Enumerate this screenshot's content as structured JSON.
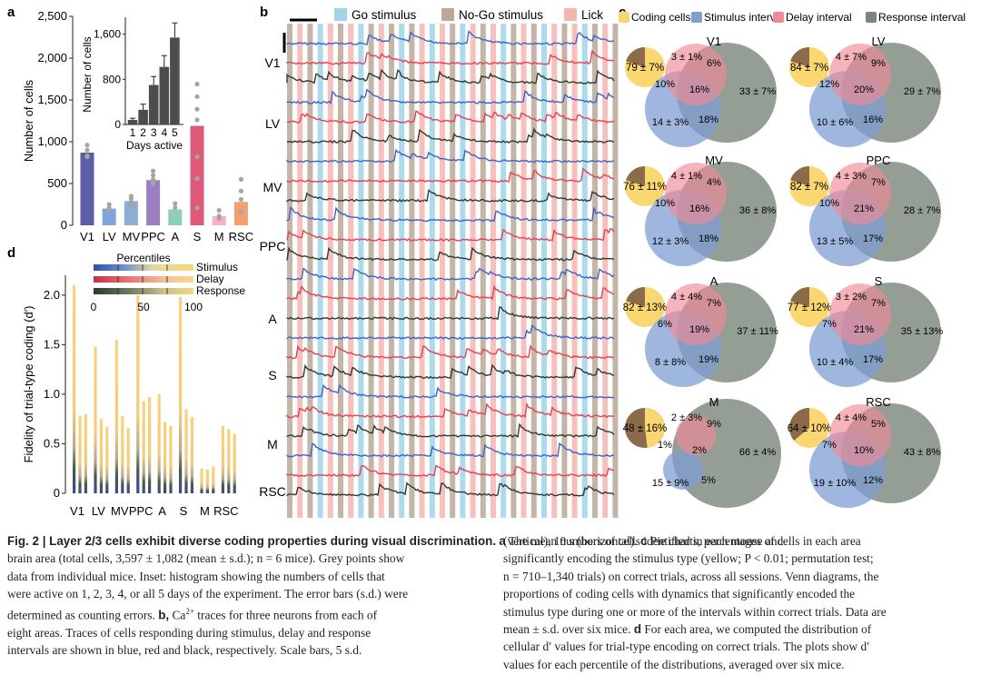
{
  "panel_labels": {
    "a": "a",
    "b": "b",
    "c": "c",
    "d": "d"
  },
  "chart_data": [
    {
      "id": "a-main",
      "type": "bar",
      "ylabel": "Number of cells",
      "ylim": [
        0,
        2500
      ],
      "yticks": [
        0,
        500,
        1000,
        1500,
        2000,
        2500
      ],
      "ytick_labels": [
        "0",
        "500",
        "1,000",
        "1,500",
        "2,000",
        "2,500"
      ],
      "categories": [
        "V1",
        "LV",
        "MV",
        "PPC",
        "A",
        "S",
        "M",
        "RSC"
      ],
      "values": [
        870,
        200,
        290,
        540,
        190,
        1190,
        110,
        280
      ],
      "colors": [
        "#5b5ea6",
        "#7ea6d8",
        "#8aaed6",
        "#9b7fc0",
        "#8fcfb7",
        "#e0587a",
        "#f4b3c3",
        "#f3a070"
      ],
      "points": [
        [
          960,
          900,
          830,
          820
        ],
        [
          250,
          210,
          170
        ],
        [
          350,
          320,
          280,
          250,
          230
        ],
        [
          650,
          600,
          550,
          520,
          500
        ],
        [
          260,
          210
        ],
        [
          1690,
          1540,
          1390,
          1260,
          820,
          560,
          210
        ],
        [
          180,
          110,
          80
        ],
        [
          550,
          410,
          310,
          160
        ]
      ]
    },
    {
      "id": "a-inset",
      "type": "bar",
      "xlabel": "Days active",
      "ylabel": "Number of cells",
      "ylim": [
        0,
        1900
      ],
      "yticks": [
        0,
        800,
        1600
      ],
      "ytick_labels": [
        "0",
        "800",
        "1,600"
      ],
      "categories": [
        "1",
        "2",
        "3",
        "4",
        "5"
      ],
      "values": [
        80,
        260,
        700,
        1020,
        1540
      ],
      "errors": [
        30,
        100,
        150,
        200,
        260
      ]
    },
    {
      "id": "d",
      "type": "bar",
      "ylabel": "Fidelity of trial-type coding (d′)",
      "ylim": [
        0,
        2.2
      ],
      "yticks": [
        0,
        0.5,
        1.0,
        1.5,
        2.0
      ],
      "ytick_labels": [
        "0",
        "0.5",
        "1.0",
        "1.5",
        "2.0"
      ],
      "categories": [
        "V1",
        "LV",
        "MV",
        "PPC",
        "A",
        "S",
        "M",
        "RSC"
      ],
      "series": [
        {
          "name": "Stimulus",
          "values": [
            2.1,
            1.48,
            1.55,
            2.0,
            1.0,
            1.98,
            0.25,
            0.68
          ]
        },
        {
          "name": "Delay",
          "values": [
            0.78,
            0.75,
            0.78,
            0.93,
            0.72,
            0.85,
            0.24,
            0.65
          ]
        },
        {
          "name": "Response",
          "values": [
            0.8,
            0.67,
            0.66,
            0.97,
            0.68,
            0.77,
            0.27,
            0.6
          ]
        }
      ],
      "legend": {
        "title": "Percentiles",
        "ticks": [
          "0",
          "50",
          "100"
        ],
        "labels": [
          "Stimulus",
          "Delay",
          "Response"
        ]
      }
    }
  ],
  "panel_b": {
    "legend": [
      "Go stimulus",
      "No-Go stimulus",
      "Lick"
    ],
    "legend_colors": [
      "#9fd4e9",
      "#b9a99a",
      "#f5b6b0"
    ],
    "areas": [
      "V1",
      "LV",
      "MV",
      "PPC",
      "A",
      "S",
      "M",
      "RSC"
    ],
    "trace_colors": {
      "stimulus": "#3f62c4",
      "delay": "#e5404f",
      "response": "#2e3b2e"
    }
  },
  "panel_c": {
    "legend": [
      "Coding cells",
      "Stimulus interval",
      "Delay interval",
      "Response interval"
    ],
    "legend_colors": [
      "#fad770",
      "#7f9ed3",
      "#f08a96",
      "#7a867a"
    ],
    "areas": [
      {
        "name": "V1",
        "coding": "79 ± 7%",
        "delay": "3 ± 1%",
        "dr": "6%",
        "sd": "10%",
        "center": "16%",
        "resp": "33 ± 7%",
        "stim": "14 ± 3%",
        "sr": "18%"
      },
      {
        "name": "LV",
        "coding": "84 ± 7%",
        "delay": "4 ± 7%",
        "dr": "9%",
        "sd": "12%",
        "center": "20%",
        "resp": "29 ± 7%",
        "stim": "10 ± 6%",
        "sr": "16%"
      },
      {
        "name": "MV",
        "coding": "76 ± 11%",
        "delay": "4 ± 1%",
        "dr": "4%",
        "sd": "10%",
        "center": "16%",
        "resp": "36 ± 8%",
        "stim": "12 ± 3%",
        "sr": "18%"
      },
      {
        "name": "PPC",
        "coding": "82 ± 7%",
        "delay": "4 ± 3%",
        "dr": "7%",
        "sd": "10%",
        "center": "21%",
        "resp": "28 ± 7%",
        "stim": "13 ± 5%",
        "sr": "17%"
      },
      {
        "name": "A",
        "coding": "82 ± 13%",
        "delay": "4 ± 4%",
        "dr": "7%",
        "sd": "6%",
        "center": "19%",
        "resp": "37 ± 11%",
        "stim": "8 ± 8%",
        "sr": "19%"
      },
      {
        "name": "S",
        "coding": "77 ± 12%",
        "delay": "3 ± 2%",
        "dr": "7%",
        "sd": "7%",
        "center": "21%",
        "resp": "35 ± 13%",
        "stim": "10 ± 4%",
        "sr": "17%"
      },
      {
        "name": "M",
        "coding": "48 ± 16%",
        "delay": "2 ± 3%",
        "dr": "9%",
        "sd": "1%",
        "center": "2%",
        "resp": "66 ± 4%",
        "stim": "15 ± 9%",
        "sr": "5%"
      },
      {
        "name": "RSC",
        "coding": "64 ± 10%",
        "delay": "4 ± 4%",
        "dr": "5%",
        "sd": "7%",
        "center": "10%",
        "resp": "43 ± 8%",
        "stim": "19 ± 10%",
        "sr": "12%"
      }
    ]
  },
  "caption": {
    "title": "Fig. 2 | Layer 2/3 cells exhibit diverse coding properties during visual discrimination.",
    "left_lines": [
      " The mean numbers of cells identified in each mouse and",
      "brain area (total cells, 3,597 ± 1,082 (mean ± s.d.); n = 6 mice). Grey points show",
      "data from individual mice. Inset: histogram showing the numbers of cells that",
      "were active on 1, 2, 3, 4, or all 5 days of the experiment. The error bars (s.d.) were",
      "determined as counting errors. ",
      " traces for three neurons from each of",
      "eight areas. Traces of cells responding during stimulus, delay and response",
      "intervals are shown in blue, red and black, respectively. Scale bars, 5 s.d."
    ],
    "right_lines": [
      "(vertical), 10 s (horizontal). ",
      " Pie charts, percentages of cells in each area",
      "significantly encoding the stimulus type (yellow; P < 0.01; permutation test;",
      "n = 710–1,340 trials) on correct trials, across all sessions. Venn diagrams, the",
      "proportions of coding cells with dynamics that significantly encoded the",
      "stimulus type during one or more of the intervals within correct trials. Data are",
      "mean ± s.d. over six mice. ",
      " For each area, we computed the distribution of",
      "cellular d′ values for trial-type encoding on correct trials. The plots show d′",
      "values for each percentile of the distributions, averaged over six mice."
    ],
    "bold_a": "a",
    "bold_b": "b,",
    "b_prefix": "Ca",
    "b_sup": "2+",
    "bold_c": "c",
    "bold_d": "d"
  }
}
